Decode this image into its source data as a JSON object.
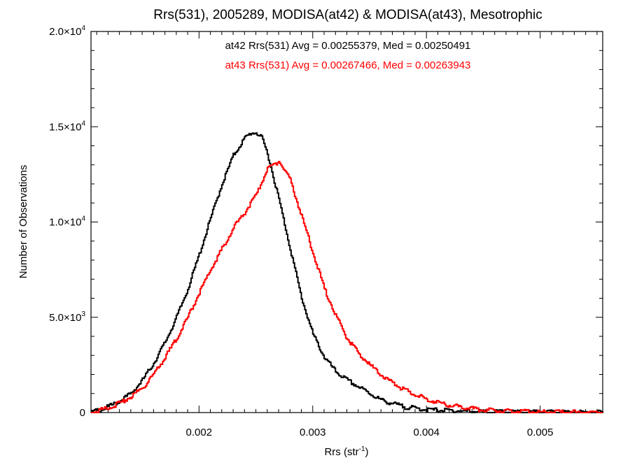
{
  "chart_data": {
    "type": "line",
    "title": "Rrs(531), 2005289, MODISA(at42) & MODISA(at43), Mesotrophic",
    "xlabel": "Rrs (str",
    "xlabel_sup": "-1",
    "xlabel_close": ")",
    "ylabel": "Number of Observations",
    "xlim": [
      0.00105,
      0.00555
    ],
    "ylim": [
      0,
      20000
    ],
    "x_ticks": [
      {
        "value": 0.002,
        "label": "0.002"
      },
      {
        "value": 0.003,
        "label": "0.003"
      },
      {
        "value": 0.004,
        "label": "0.004"
      },
      {
        "value": 0.005,
        "label": "0.005"
      }
    ],
    "y_ticks": [
      {
        "value": 0,
        "mant": "0",
        "exp": ""
      },
      {
        "value": 5000,
        "mant": "5.0×10",
        "exp": "3"
      },
      {
        "value": 10000,
        "mant": "1.0×10",
        "exp": "4"
      },
      {
        "value": 15000,
        "mant": "1.5×10",
        "exp": "4"
      },
      {
        "value": 20000,
        "mant": "2.0×10",
        "exp": "4"
      }
    ],
    "series": [
      {
        "label": "at42 Rrs(531) Avg = 0.00255379, Med = 0.00250491",
        "color": "#000000",
        "x": [
          0.00105,
          0.0012,
          0.0013,
          0.0014,
          0.0015,
          0.0016,
          0.0017,
          0.0018,
          0.0019,
          0.002,
          0.0021,
          0.0022,
          0.0023,
          0.0024,
          0.00245,
          0.0025,
          0.00255,
          0.0026,
          0.0027,
          0.0028,
          0.0029,
          0.003,
          0.0031,
          0.0032,
          0.0033,
          0.0034,
          0.0035,
          0.0036,
          0.0038,
          0.004,
          0.0045,
          0.005,
          0.00555
        ],
        "y": [
          0,
          300,
          600,
          1000,
          1700,
          2600,
          3700,
          5000,
          6500,
          8300,
          10200,
          12000,
          13500,
          14400,
          14650,
          14700,
          14400,
          13600,
          11200,
          8600,
          6000,
          4100,
          2900,
          2150,
          1700,
          1350,
          1000,
          650,
          300,
          150,
          40,
          10,
          0
        ]
      },
      {
        "label": "at43 Rrs(531) Avg = 0.00267466, Med = 0.00263943",
        "color": "#ff0000",
        "x": [
          0.00105,
          0.0012,
          0.0013,
          0.0014,
          0.0015,
          0.0016,
          0.0017,
          0.0018,
          0.0019,
          0.002,
          0.0021,
          0.0022,
          0.0023,
          0.0024,
          0.0025,
          0.0026,
          0.0027,
          0.0028,
          0.0029,
          0.003,
          0.0031,
          0.0032,
          0.0033,
          0.0034,
          0.0035,
          0.0036,
          0.0038,
          0.004,
          0.0042,
          0.0045,
          0.005,
          0.00555
        ],
        "y": [
          0,
          250,
          500,
          850,
          1300,
          2000,
          2900,
          3900,
          5000,
          6300,
          7500,
          8600,
          9700,
          10500,
          11400,
          12800,
          13200,
          12200,
          10300,
          8400,
          6500,
          5100,
          3900,
          3100,
          2500,
          1950,
          1200,
          700,
          380,
          130,
          30,
          0
        ]
      }
    ],
    "grid": false,
    "legend_position": "top-center"
  }
}
